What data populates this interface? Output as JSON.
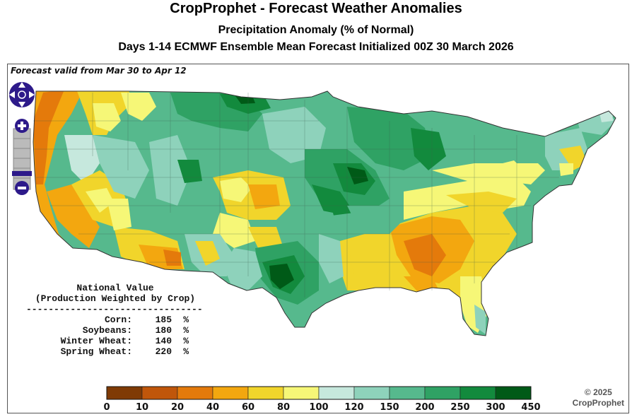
{
  "title": "CropProphet - Forecast Weather Anomalies",
  "subtitle": "Precipitation Anomaly (% of Normal)",
  "subtitle2": "Days 1-14 ECMWF Ensemble Mean Forecast Initialized 00Z 30 March 2026",
  "valid_text": "Forecast valid from Mar 30 to Apr 12",
  "national": {
    "header1": "National Value",
    "header2": "(Production Weighted by Crop)",
    "rule": "--------------------------------",
    "unit": "%",
    "crops": [
      {
        "label": "Corn:",
        "value": "185"
      },
      {
        "label": "Soybeans:",
        "value": "180"
      },
      {
        "label": "Winter Wheat:",
        "value": "140"
      },
      {
        "label": "Spring Wheat:",
        "value": "220"
      }
    ]
  },
  "legend": {
    "ticks": [
      "0",
      "10",
      "20",
      "40",
      "60",
      "80",
      "100",
      "120",
      "150",
      "200",
      "250",
      "300",
      "450"
    ],
    "colors": [
      "#7f3a05",
      "#c0560a",
      "#e47a0b",
      "#f3a70f",
      "#f1d52b",
      "#f6f777",
      "#c6e8dd",
      "#8ed2bb",
      "#56b98d",
      "#2fa264",
      "#128a3d",
      "#005a17"
    ]
  },
  "copyright": {
    "line1": "© 2025",
    "line2": "CropProphet"
  },
  "controls": {
    "pan": "pan-control",
    "zoom_in": "+",
    "zoom_out": "−"
  }
}
